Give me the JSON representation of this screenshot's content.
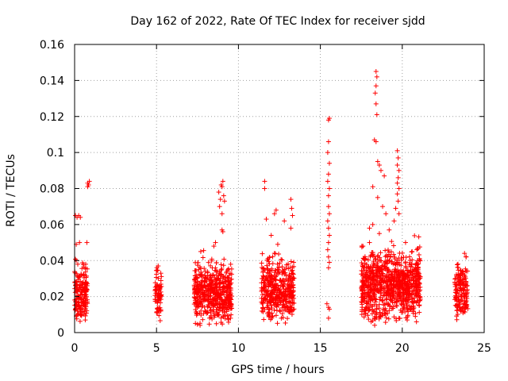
{
  "chart_data": {
    "type": "scatter",
    "title": "Day 162 of 2022, Rate Of TEC Index for receiver sjdd",
    "xlabel": "GPS time / hours",
    "ylabel": "ROTI / TECUs",
    "xlim": [
      0,
      25
    ],
    "ylim": [
      0,
      0.16
    ],
    "x_ticks": [
      0,
      5,
      10,
      15,
      20,
      25
    ],
    "y_ticks": [
      0,
      0.02,
      0.04,
      0.06,
      0.08,
      0.1,
      0.12,
      0.14,
      0.16
    ],
    "x_tick_labels": [
      "0",
      "5",
      "10",
      "15",
      "20",
      "25"
    ],
    "y_tick_labels": [
      "0",
      "0.02",
      "0.04",
      "0.06",
      "0.08",
      "0.1",
      "0.12",
      "0.14",
      "0.16"
    ],
    "grid": true,
    "marker": "+",
    "color": "#ff0000",
    "clusters": [
      {
        "x": [
          0.0,
          0.8
        ],
        "y_center": 0.021,
        "spread": 0.007,
        "count": 180
      },
      {
        "x": [
          4.9,
          5.3
        ],
        "y_center": 0.022,
        "spread": 0.006,
        "count": 70
      },
      {
        "x": [
          7.3,
          9.6
        ],
        "y_center": 0.022,
        "spread": 0.008,
        "count": 520
      },
      {
        "x": [
          11.4,
          13.4
        ],
        "y_center": 0.024,
        "spread": 0.008,
        "count": 420
      },
      {
        "x": [
          17.5,
          21.1
        ],
        "y_center": 0.027,
        "spread": 0.009,
        "count": 900
      },
      {
        "x": [
          23.2,
          24.0
        ],
        "y_center": 0.023,
        "spread": 0.007,
        "count": 160
      }
    ],
    "points": [
      {
        "x": 0.05,
        "y": 0.065
      },
      {
        "x": 0.15,
        "y": 0.064
      },
      {
        "x": 0.25,
        "y": 0.065
      },
      {
        "x": 0.35,
        "y": 0.064
      },
      {
        "x": 0.1,
        "y": 0.049
      },
      {
        "x": 0.3,
        "y": 0.05
      },
      {
        "x": 0.75,
        "y": 0.05
      },
      {
        "x": 0.1,
        "y": 0.04
      },
      {
        "x": 0.8,
        "y": 0.083
      },
      {
        "x": 0.85,
        "y": 0.082
      },
      {
        "x": 0.9,
        "y": 0.084
      },
      {
        "x": 0.8,
        "y": 0.081
      },
      {
        "x": 0.65,
        "y": 0.007
      },
      {
        "x": 0.4,
        "y": 0.01
      },
      {
        "x": 5.1,
        "y": 0.037
      },
      {
        "x": 5.05,
        "y": 0.011
      },
      {
        "x": 8.8,
        "y": 0.078
      },
      {
        "x": 8.95,
        "y": 0.082
      },
      {
        "x": 9.0,
        "y": 0.081
      },
      {
        "x": 9.05,
        "y": 0.084
      },
      {
        "x": 8.9,
        "y": 0.074
      },
      {
        "x": 9.1,
        "y": 0.076
      },
      {
        "x": 8.85,
        "y": 0.07
      },
      {
        "x": 9.15,
        "y": 0.073
      },
      {
        "x": 9.0,
        "y": 0.066
      },
      {
        "x": 9.05,
        "y": 0.056
      },
      {
        "x": 9.0,
        "y": 0.057
      },
      {
        "x": 8.5,
        "y": 0.048
      },
      {
        "x": 8.6,
        "y": 0.05
      },
      {
        "x": 7.7,
        "y": 0.045
      },
      {
        "x": 11.6,
        "y": 0.084
      },
      {
        "x": 11.6,
        "y": 0.08
      },
      {
        "x": 11.7,
        "y": 0.063
      },
      {
        "x": 12.3,
        "y": 0.068
      },
      {
        "x": 12.2,
        "y": 0.066
      },
      {
        "x": 12.8,
        "y": 0.062
      },
      {
        "x": 13.2,
        "y": 0.074
      },
      {
        "x": 13.25,
        "y": 0.069
      },
      {
        "x": 13.3,
        "y": 0.065
      },
      {
        "x": 13.2,
        "y": 0.058
      },
      {
        "x": 12.0,
        "y": 0.054
      },
      {
        "x": 12.4,
        "y": 0.049
      },
      {
        "x": 15.5,
        "y": 0.118
      },
      {
        "x": 15.55,
        "y": 0.119
      },
      {
        "x": 15.5,
        "y": 0.106
      },
      {
        "x": 15.45,
        "y": 0.1
      },
      {
        "x": 15.55,
        "y": 0.094
      },
      {
        "x": 15.5,
        "y": 0.088
      },
      {
        "x": 15.45,
        "y": 0.084
      },
      {
        "x": 15.55,
        "y": 0.08
      },
      {
        "x": 15.5,
        "y": 0.076
      },
      {
        "x": 15.5,
        "y": 0.07
      },
      {
        "x": 15.55,
        "y": 0.066
      },
      {
        "x": 15.45,
        "y": 0.062
      },
      {
        "x": 15.5,
        "y": 0.058
      },
      {
        "x": 15.55,
        "y": 0.054
      },
      {
        "x": 15.5,
        "y": 0.05
      },
      {
        "x": 15.45,
        "y": 0.046
      },
      {
        "x": 15.5,
        "y": 0.042
      },
      {
        "x": 15.55,
        "y": 0.039
      },
      {
        "x": 15.5,
        "y": 0.036
      },
      {
        "x": 15.4,
        "y": 0.016
      },
      {
        "x": 15.5,
        "y": 0.014
      },
      {
        "x": 15.55,
        "y": 0.013
      },
      {
        "x": 15.5,
        "y": 0.008
      },
      {
        "x": 18.4,
        "y": 0.145
      },
      {
        "x": 18.45,
        "y": 0.142
      },
      {
        "x": 18.4,
        "y": 0.137
      },
      {
        "x": 18.35,
        "y": 0.133
      },
      {
        "x": 18.4,
        "y": 0.127
      },
      {
        "x": 18.45,
        "y": 0.121
      },
      {
        "x": 18.3,
        "y": 0.107
      },
      {
        "x": 18.4,
        "y": 0.106
      },
      {
        "x": 18.5,
        "y": 0.095
      },
      {
        "x": 18.6,
        "y": 0.093
      },
      {
        "x": 18.7,
        "y": 0.09
      },
      {
        "x": 18.9,
        "y": 0.087
      },
      {
        "x": 18.2,
        "y": 0.081
      },
      {
        "x": 18.5,
        "y": 0.075
      },
      {
        "x": 18.8,
        "y": 0.07
      },
      {
        "x": 19.0,
        "y": 0.066
      },
      {
        "x": 19.7,
        "y": 0.101
      },
      {
        "x": 19.75,
        "y": 0.097
      },
      {
        "x": 19.7,
        "y": 0.093
      },
      {
        "x": 19.8,
        "y": 0.09
      },
      {
        "x": 19.75,
        "y": 0.086
      },
      {
        "x": 19.7,
        "y": 0.083
      },
      {
        "x": 19.8,
        "y": 0.08
      },
      {
        "x": 19.7,
        "y": 0.077
      },
      {
        "x": 19.75,
        "y": 0.073
      },
      {
        "x": 19.6,
        "y": 0.069
      },
      {
        "x": 19.8,
        "y": 0.066
      },
      {
        "x": 19.5,
        "y": 0.062
      },
      {
        "x": 18.0,
        "y": 0.058
      },
      {
        "x": 18.2,
        "y": 0.06
      },
      {
        "x": 18.6,
        "y": 0.055
      },
      {
        "x": 19.2,
        "y": 0.057
      },
      {
        "x": 17.6,
        "y": 0.048
      },
      {
        "x": 18.0,
        "y": 0.05
      },
      {
        "x": 20.2,
        "y": 0.05
      },
      {
        "x": 20.6,
        "y": 0.045
      },
      {
        "x": 23.4,
        "y": 0.038
      },
      {
        "x": 23.8,
        "y": 0.044
      },
      {
        "x": 23.9,
        "y": 0.042
      },
      {
        "x": 18.1,
        "y": 0.006
      },
      {
        "x": 18.3,
        "y": 0.008
      },
      {
        "x": 19.8,
        "y": 0.008
      },
      {
        "x": 20.3,
        "y": 0.007
      }
    ]
  }
}
